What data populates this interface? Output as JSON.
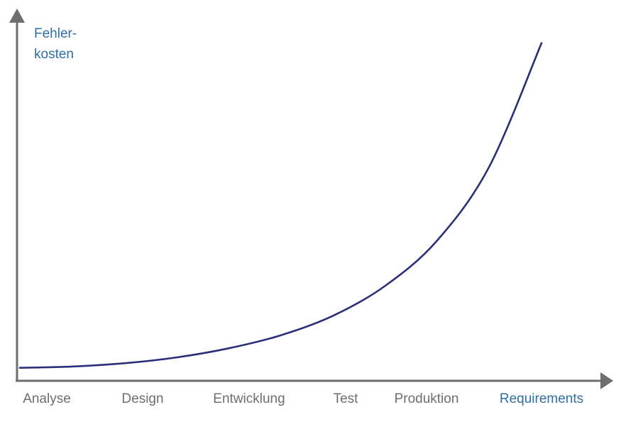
{
  "chart_data": {
    "type": "line",
    "title": "",
    "xlabel": "",
    "ylabel": "Fehler-\nkosten",
    "categories": [
      "Analyse",
      "Design",
      "Entwicklung",
      "Test",
      "Produktion",
      "Requirements"
    ],
    "highlight_category": "Requirements",
    "series": [
      {
        "x": [
          0,
          0.5,
          1,
          1.5,
          2,
          2.5,
          3,
          3.5,
          4,
          4.5,
          5
        ],
        "values": [
          1.0,
          1.1,
          1.35,
          1.8,
          2.5,
          3.5,
          5.0,
          7.3,
          10.8,
          16.5,
          26.0
        ]
      }
    ],
    "ylim": [
      0,
      28
    ],
    "grid": false,
    "colors": {
      "line": "#2b2f7a",
      "axis": "#6e6e6e",
      "ylabel": "#2f6ea6",
      "category_text": "#6e6e6e",
      "highlight_text": "#2f6ea6"
    }
  }
}
